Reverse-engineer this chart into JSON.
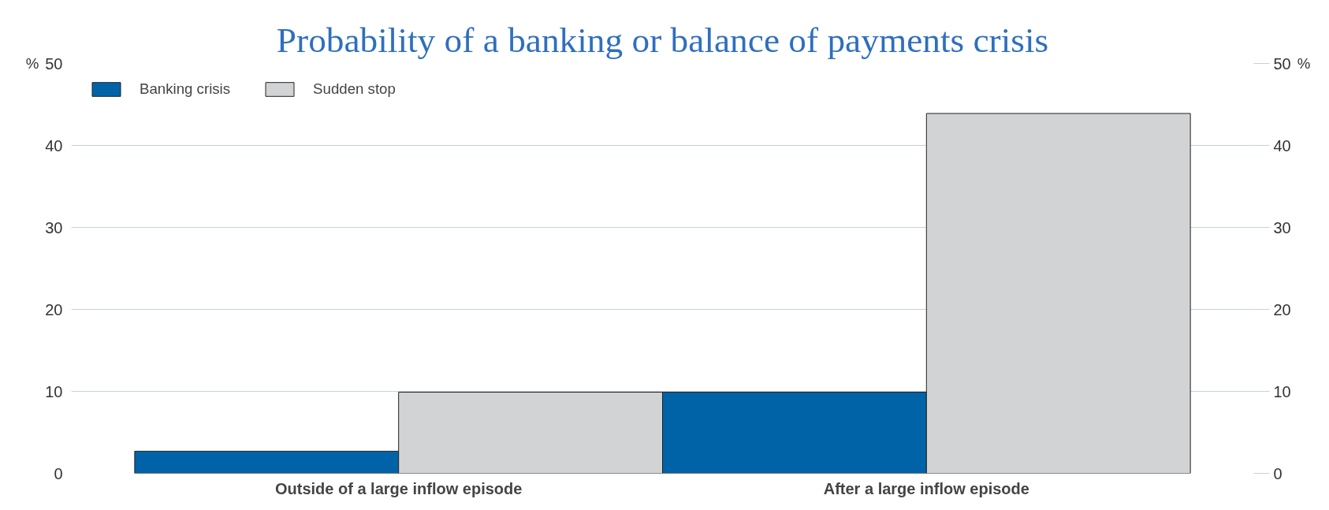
{
  "chart_data": {
    "type": "bar",
    "title": "Probability of a banking or balance of payments crisis",
    "categories": [
      "Outside of a large inflow episode",
      "After a large inflow episode"
    ],
    "series": [
      {
        "name": "Banking crisis",
        "color": "#0063a8",
        "values": [
          2.7,
          9.9
        ]
      },
      {
        "name": "Sudden stop",
        "color": "#d2d3d5",
        "values": [
          9.9,
          43.9
        ]
      }
    ],
    "ylabel": "%",
    "y2label": "%",
    "ylim": [
      0,
      50
    ],
    "yticks": [
      0,
      10,
      20,
      30,
      40,
      50
    ],
    "y2lim": [
      0,
      50
    ],
    "y2ticks": [
      0,
      10,
      20,
      30,
      40,
      50
    ],
    "grid": "y",
    "legend": "top left"
  }
}
